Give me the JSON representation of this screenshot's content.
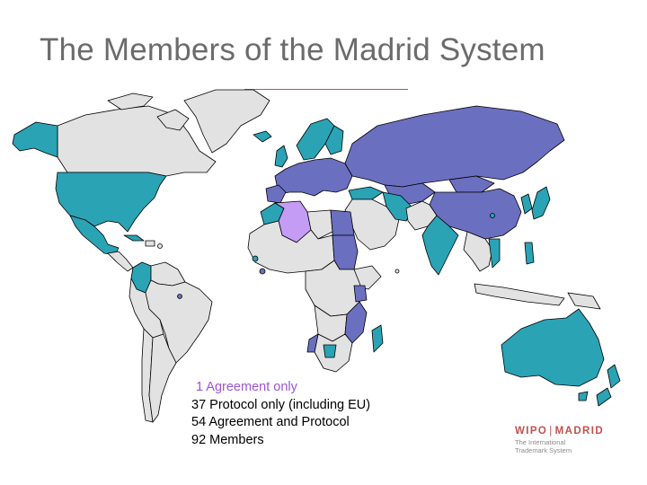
{
  "title": "The Members of the Madrid System",
  "legend": {
    "agreement_only": "1 Agreement only",
    "protocol_only": "37 Protocol only (including EU)",
    "agreement_and_protocol": "54 Agreement and Protocol",
    "members": "92 Members"
  },
  "logo": {
    "wipo": "WIPO",
    "madrid": "MADRID",
    "line1": "The International",
    "line2": "Trademark System"
  },
  "colors": {
    "agreement_only": "#c59cf5",
    "protocol_only": "#2aa3b5",
    "agreement_and_protocol": "#6b6fc0",
    "non_member": "#e2e2e2",
    "border": "#000000"
  }
}
